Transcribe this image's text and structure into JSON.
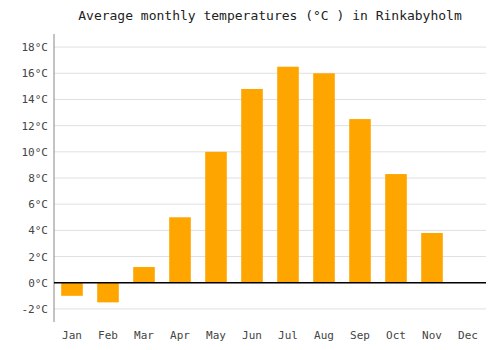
{
  "chart_data": {
    "type": "bar",
    "title": "Average monthly temperatures (°C ) in Rinkabyholm",
    "categories": [
      "Jan",
      "Feb",
      "Mar",
      "Apr",
      "May",
      "Jun",
      "Jul",
      "Aug",
      "Sep",
      "Oct",
      "Nov",
      "Dec"
    ],
    "values": [
      -1.0,
      -1.5,
      1.2,
      5.0,
      10.0,
      14.8,
      16.5,
      16.0,
      12.5,
      8.3,
      3.8,
      0.0
    ],
    "color": "#FFA500",
    "ylim": [
      -3,
      19
    ],
    "yticks": [
      {
        "value": -2,
        "label": "-2°C"
      },
      {
        "value": 0,
        "label": "0°C"
      },
      {
        "value": 2,
        "label": "2°C"
      },
      {
        "value": 4,
        "label": "4°C"
      },
      {
        "value": 6,
        "label": "6°C"
      },
      {
        "value": 8,
        "label": "8°C"
      },
      {
        "value": 10,
        "label": "10°C"
      },
      {
        "value": 12,
        "label": "12°C"
      },
      {
        "value": 14,
        "label": "14°C"
      },
      {
        "value": 16,
        "label": "16°C"
      },
      {
        "value": 18,
        "label": "18°C"
      }
    ],
    "grid": true
  }
}
